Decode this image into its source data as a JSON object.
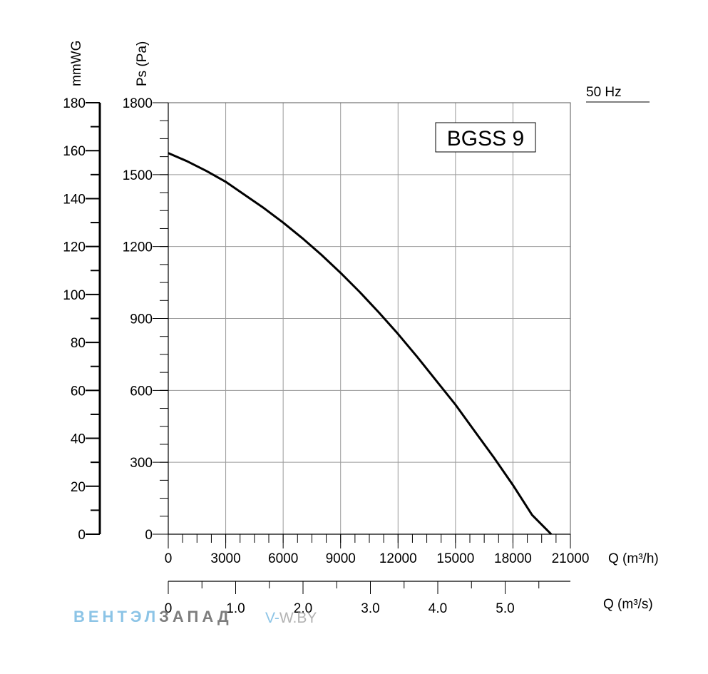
{
  "chart_data": {
    "type": "line",
    "model_label": "BGSS 9",
    "frequency_label": "50 Hz",
    "left_axis": {
      "label": "mmWG",
      "range": [
        0,
        180
      ],
      "ticks": [
        "0",
        "20",
        "40",
        "60",
        "80",
        "100",
        "120",
        "140",
        "160",
        "180"
      ]
    },
    "y_axis": {
      "label": "Ps (Pa)",
      "range": [
        0,
        1800
      ],
      "ticks": [
        "0",
        "300",
        "600",
        "900",
        "1200",
        "1500",
        "1800"
      ]
    },
    "x_axis": {
      "label": "Q (m³/h)",
      "range": [
        0,
        21000
      ],
      "ticks": [
        "0",
        "3000",
        "6000",
        "9000",
        "12000",
        "15000",
        "18000",
        "21000"
      ]
    },
    "x2_axis": {
      "label": "Q (m³/s)",
      "ticks": [
        "0",
        "1.0",
        "2.0",
        "3.0",
        "4.0",
        "5.0"
      ]
    },
    "grid": true,
    "series": [
      {
        "x": [
          0,
          1000,
          2000,
          3000,
          4000,
          5000,
          6000,
          7000,
          8000,
          9000,
          10000,
          11000,
          12000,
          13000,
          14000,
          15000,
          16000,
          17000,
          18000,
          19000,
          20000
        ],
        "y": [
          1590,
          1555,
          1515,
          1470,
          1415,
          1360,
          1300,
          1235,
          1165,
          1090,
          1010,
          925,
          835,
          740,
          640,
          540,
          430,
          320,
          205,
          80,
          0
        ]
      }
    ]
  },
  "watermark": {
    "brand_part1": "ВЕНТЭЛ",
    "brand_part2": "ЗАПАД",
    "url_prefix": "V-",
    "url_rest": "W.BY"
  }
}
